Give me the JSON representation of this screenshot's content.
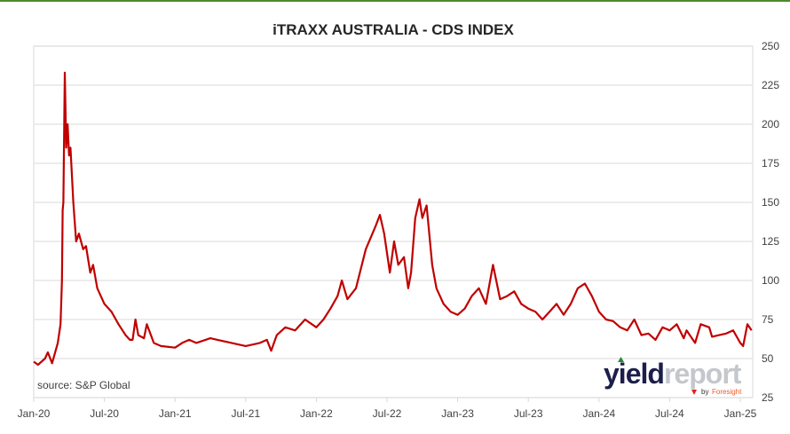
{
  "chart_data": {
    "type": "line",
    "title": "iTRAXX AUSTRALIA - CDS INDEX",
    "xlabel": "",
    "ylabel": "",
    "ylim": [
      25,
      250
    ],
    "yticks": [
      25,
      50,
      75,
      100,
      125,
      150,
      175,
      200,
      225,
      250
    ],
    "xticks": [
      "Jan-20",
      "Jul-20",
      "Jan-21",
      "Jul-21",
      "Jan-22",
      "Jul-22",
      "Jan-23",
      "Jul-23",
      "Jan-24",
      "Jul-24",
      "Jan-25"
    ],
    "xlim_years_since_jan20": [
      0,
      5.1
    ],
    "grid": true,
    "line_color": "#c00000",
    "annotation": "source: S&P Global",
    "series": [
      {
        "name": "iTraxx Australia",
        "t": [
          0,
          0.03,
          0.08,
          0.1,
          0.13,
          0.17,
          0.19,
          0.2,
          0.205,
          0.21,
          0.22,
          0.23,
          0.24,
          0.25,
          0.26,
          0.28,
          0.3,
          0.32,
          0.35,
          0.37,
          0.4,
          0.42,
          0.45,
          0.5,
          0.55,
          0.6,
          0.65,
          0.68,
          0.7,
          0.72,
          0.74,
          0.78,
          0.8,
          0.85,
          0.9,
          1.0,
          1.05,
          1.1,
          1.15,
          1.25,
          1.3,
          1.4,
          1.5,
          1.6,
          1.65,
          1.68,
          1.72,
          1.78,
          1.85,
          1.92,
          2.0,
          2.05,
          2.1,
          2.15,
          2.18,
          2.22,
          2.28,
          2.35,
          2.42,
          2.45,
          2.48,
          2.52,
          2.55,
          2.58,
          2.62,
          2.65,
          2.67,
          2.7,
          2.73,
          2.75,
          2.78,
          2.82,
          2.85,
          2.9,
          2.95,
          3.0,
          3.05,
          3.1,
          3.15,
          3.2,
          3.25,
          3.3,
          3.35,
          3.4,
          3.45,
          3.5,
          3.55,
          3.6,
          3.65,
          3.7,
          3.75,
          3.8,
          3.85,
          3.9,
          3.95,
          4.0,
          4.05,
          4.1,
          4.15,
          4.2,
          4.25,
          4.3,
          4.35,
          4.4,
          4.45,
          4.5,
          4.55,
          4.6,
          4.62,
          4.68,
          4.72,
          4.78,
          4.8,
          4.85,
          4.9,
          4.95,
          5.0,
          5.02,
          5.05,
          5.08
        ],
        "values": [
          48,
          46,
          50,
          54,
          47,
          60,
          72,
          100,
          145,
          150,
          233,
          185,
          200,
          180,
          185,
          150,
          125,
          130,
          120,
          122,
          105,
          110,
          95,
          85,
          80,
          72,
          65,
          62,
          62,
          75,
          65,
          63,
          72,
          60,
          58,
          57,
          60,
          62,
          60,
          63,
          62,
          60,
          58,
          60,
          62,
          55,
          65,
          70,
          68,
          75,
          70,
          75,
          82,
          90,
          100,
          88,
          95,
          120,
          135,
          142,
          130,
          105,
          125,
          110,
          115,
          95,
          105,
          140,
          152,
          140,
          148,
          110,
          95,
          85,
          80,
          78,
          82,
          90,
          95,
          85,
          110,
          88,
          90,
          93,
          85,
          82,
          80,
          75,
          80,
          85,
          78,
          85,
          95,
          98,
          90,
          80,
          75,
          74,
          70,
          68,
          75,
          65,
          66,
          62,
          70,
          68,
          72,
          63,
          68,
          60,
          72,
          70,
          64,
          65,
          66,
          68,
          60,
          58,
          72,
          68
        ]
      }
    ]
  },
  "logo": {
    "brand_dark": "yield",
    "brand_light": "report",
    "byline_prefix": "by",
    "byline_brand": "Foresight"
  }
}
